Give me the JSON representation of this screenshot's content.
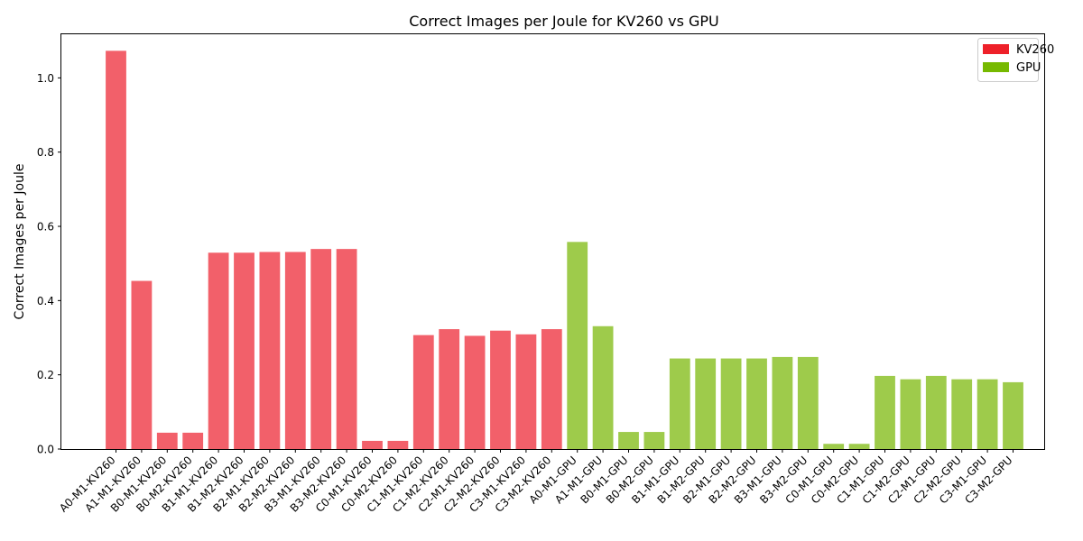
{
  "chart_data": {
    "type": "bar",
    "title": "Correct Images per Joule for KV260 vs GPU",
    "xlabel": "",
    "ylabel": "Correct Images per Joule",
    "ylim": [
      0,
      1.12
    ],
    "yticks": [
      "0.0",
      "0.2",
      "0.4",
      "0.6",
      "0.8",
      "1.0"
    ],
    "grid": false,
    "legend_position": "top-right",
    "colors": {
      "KV260": "#f2606a",
      "GPU": "#9ecb4b",
      "legend_KV260": "#ee2029",
      "legend_GPU": "#76b900"
    },
    "legend": [
      {
        "name": "KV260"
      },
      {
        "name": "GPU"
      }
    ],
    "categories": [
      "A0-M1-KV260",
      "A1-M1-KV260",
      "B0-M1-KV260",
      "B0-M2-KV260",
      "B1-M1-KV260",
      "B1-M2-KV260",
      "B2-M1-KV260",
      "B2-M2-KV260",
      "B3-M1-KV260",
      "B3-M2-KV260",
      "C0-M1-KV260",
      "C0-M2-KV260",
      "C1-M1-KV260",
      "C1-M2-KV260",
      "C2-M1-KV260",
      "C2-M2-KV260",
      "C3-M1-KV260",
      "C3-M2-KV260",
      "A0-M1-GPU",
      "A1-M1-GPU",
      "B0-M1-GPU",
      "B0-M2-GPU",
      "B1-M1-GPU",
      "B1-M2-GPU",
      "B2-M1-GPU",
      "B2-M2-GPU",
      "B3-M1-GPU",
      "B3-M2-GPU",
      "C0-M1-GPU",
      "C0-M2-GPU",
      "C1-M1-GPU",
      "C1-M2-GPU",
      "C2-M1-GPU",
      "C2-M2-GPU",
      "C3-M1-GPU",
      "C3-M2-GPU"
    ],
    "groups": [
      "KV260",
      "KV260",
      "KV260",
      "KV260",
      "KV260",
      "KV260",
      "KV260",
      "KV260",
      "KV260",
      "KV260",
      "KV260",
      "KV260",
      "KV260",
      "KV260",
      "KV260",
      "KV260",
      "KV260",
      "KV260",
      "GPU",
      "GPU",
      "GPU",
      "GPU",
      "GPU",
      "GPU",
      "GPU",
      "GPU",
      "GPU",
      "GPU",
      "GPU",
      "GPU",
      "GPU",
      "GPU",
      "GPU",
      "GPU",
      "GPU",
      "GPU"
    ],
    "values": [
      1.073,
      0.453,
      0.044,
      0.044,
      0.529,
      0.529,
      0.531,
      0.531,
      0.539,
      0.539,
      0.022,
      0.022,
      0.307,
      0.323,
      0.305,
      0.319,
      0.309,
      0.323,
      0.558,
      0.331,
      0.046,
      0.046,
      0.244,
      0.244,
      0.244,
      0.244,
      0.248,
      0.248,
      0.014,
      0.014,
      0.197,
      0.188,
      0.197,
      0.188,
      0.188,
      0.18
    ]
  }
}
